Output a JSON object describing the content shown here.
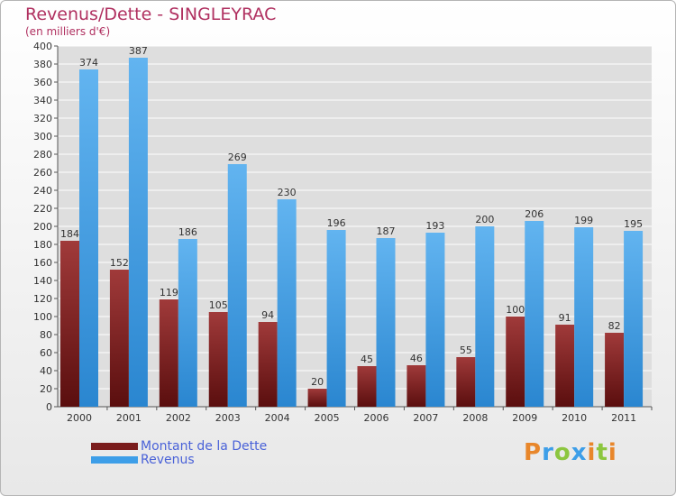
{
  "chart_data": {
    "type": "bar",
    "title": "Revenus/Dette - SINGLEYRAC",
    "subtitle": "(en milliers d'€)",
    "categories": [
      "2000",
      "2001",
      "2002",
      "2003",
      "2004",
      "2005",
      "2006",
      "2007",
      "2008",
      "2009",
      "2010",
      "2011"
    ],
    "series": [
      {
        "name": "Montant de la Dette",
        "values": [
          184,
          152,
          119,
          105,
          94,
          20,
          45,
          46,
          55,
          100,
          91,
          82
        ],
        "color": "#7a1c1c"
      },
      {
        "name": "Revenus",
        "values": [
          374,
          387,
          186,
          269,
          230,
          196,
          187,
          193,
          200,
          206,
          199,
          195
        ],
        "color": "#3d9ee8"
      }
    ],
    "ylim": [
      0,
      400
    ],
    "ytick_step": 20,
    "grid": true,
    "legend_position": "bottom-left"
  },
  "logo": {
    "letters": [
      "P",
      "r",
      "o",
      "x",
      "i",
      "t",
      "i"
    ],
    "colors": [
      "#e8862a",
      "#3d9ee8",
      "#8cc63f",
      "#3d9ee8",
      "#e8862a",
      "#8cc63f",
      "#e8862a"
    ]
  }
}
